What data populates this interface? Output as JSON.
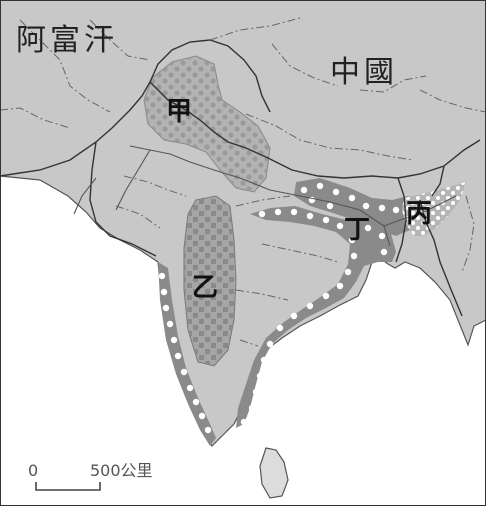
{
  "map": {
    "country_labels": [
      "阿富汗",
      "中國"
    ],
    "region_labels": [
      "甲",
      "乙",
      "丙",
      "丁"
    ],
    "scale_bar": {
      "start": "0",
      "end": "500公里"
    },
    "colors": {
      "sea": "#ffffff",
      "land": "#c8c8c8",
      "region_jia": "#b3b3b3",
      "region_yi": "#a6a6a6",
      "coastal_belt": "#8a8a8a",
      "dot": "#ffffff",
      "square": "#8f8f8f",
      "border": "#444444"
    },
    "legend_patterns": [
      "jia-dotted-pattern",
      "yi-square-pattern",
      "coastal-white-dot-pattern",
      "bing-light-dot-pattern"
    ]
  }
}
